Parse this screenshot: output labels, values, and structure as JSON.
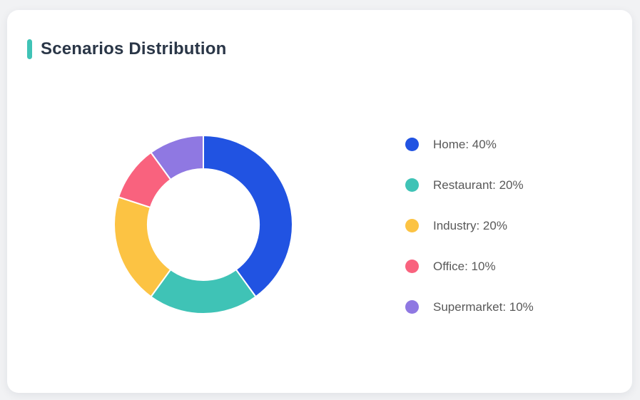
{
  "page": {
    "background": "#f1f2f4"
  },
  "card": {
    "title": "Scenarios Distribution",
    "accent_color": "#3fc3b6",
    "background": "#ffffff"
  },
  "chart_data": {
    "type": "pie",
    "title": "Scenarios Distribution",
    "donut": true,
    "start_angle_deg": 0,
    "direction": "clockwise",
    "outer_radius_px": 125,
    "inner_radius_px": 78,
    "legend_position": "right",
    "unit": "%",
    "segments": [
      {
        "label": "Home",
        "value": 40,
        "display": "Home: 40%",
        "color": "#2153e2"
      },
      {
        "label": "Restaurant",
        "value": 20,
        "display": "Restaurant: 20%",
        "color": "#3fc3b6"
      },
      {
        "label": "Industry",
        "value": 20,
        "display": "Industry: 20%",
        "color": "#fcc343"
      },
      {
        "label": "Office",
        "value": 10,
        "display": "Office: 10%",
        "color": "#f9627e"
      },
      {
        "label": "Supermarket",
        "value": 10,
        "display": "Supermarket: 10%",
        "color": "#8f78e2"
      }
    ]
  }
}
